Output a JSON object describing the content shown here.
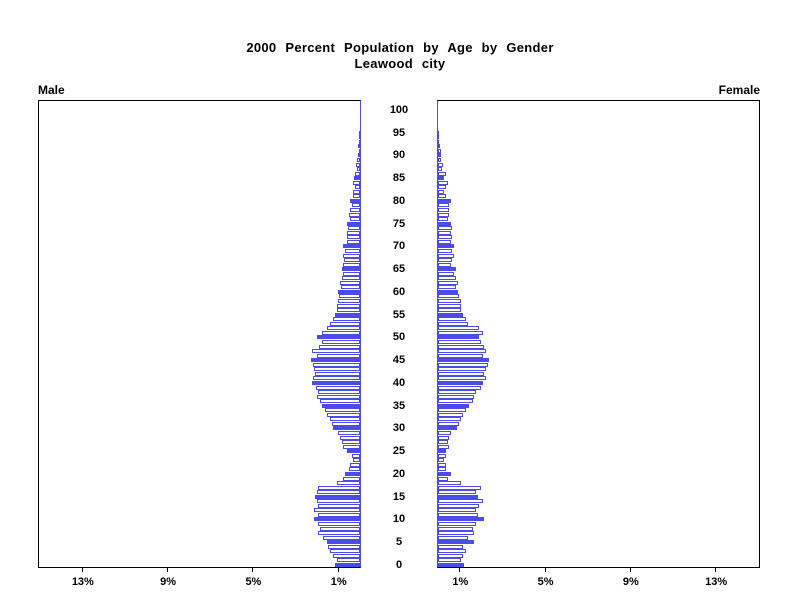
{
  "title": {
    "line1": "2000 Percent Population by Age by Gender",
    "line2": "Leawood city"
  },
  "left_label": "Male",
  "right_label": "Female",
  "colors": {
    "bar_blue": "#4b4beb",
    "axis_black": "#000000",
    "background": "#ffffff"
  },
  "chart_data": {
    "type": "bar",
    "subtype": "population-pyramid",
    "title": "2000 Percent Population by Age by Gender",
    "subtitle": "Leawood city",
    "unit": "percent of total population",
    "orientation": "horizontal, male bars extend left, female bars extend right",
    "highlight": "bars at ages divisible by 5 are solid blue, others white with blue outline",
    "age_axis": {
      "min": 0,
      "max": 100,
      "tick_step": 5,
      "ticks": [
        "0",
        "5",
        "10",
        "15",
        "20",
        "25",
        "30",
        "35",
        "40",
        "45",
        "50",
        "55",
        "60",
        "65",
        "70",
        "75",
        "80",
        "85",
        "90",
        "95",
        "100"
      ]
    },
    "pct_axis": {
      "ticks": [
        1,
        5,
        9,
        13
      ],
      "tick_labels": [
        "1%",
        "5%",
        "9%",
        "13%"
      ],
      "max": 15
    },
    "series": [
      {
        "name": "Male",
        "side": "left",
        "ages": "index equals age in years, 0 through 100",
        "values": [
          1.17,
          1.1,
          1.25,
          1.41,
          1.49,
          1.56,
          1.72,
          1.96,
          1.88,
          1.96,
          2.16,
          1.96,
          2.16,
          1.96,
          2.03,
          2.11,
          2.03,
          1.96,
          1.1,
          0.78,
          0.7,
          0.5,
          0.47,
          0.31,
          0.39,
          0.63,
          0.78,
          0.86,
          0.94,
          1.02,
          1.25,
          1.33,
          1.4,
          1.56,
          1.64,
          1.8,
          1.88,
          2.03,
          1.96,
          2.07,
          2.27,
          2.19,
          2.11,
          2.16,
          2.19,
          2.3,
          2.03,
          2.27,
          1.91,
          1.8,
          2.0,
          1.8,
          1.56,
          1.4,
          1.25,
          1.17,
          1.06,
          1.1,
          1.02,
          0.97,
          1.02,
          0.9,
          0.94,
          0.86,
          0.81,
          0.86,
          0.78,
          0.75,
          0.78,
          0.7,
          0.78,
          0.6,
          0.63,
          0.6,
          0.55,
          0.63,
          0.47,
          0.5,
          0.47,
          0.39,
          0.47,
          0.34,
          0.31,
          0.23,
          0.31,
          0.27,
          0.23,
          0.15,
          0.19,
          0.15,
          0.08,
          0.06,
          0.08,
          0.03,
          0.02,
          0.03,
          0,
          0,
          0,
          0,
          0
        ]
      },
      {
        "name": "Female",
        "side": "right",
        "ages": "index equals age in years, 0 through 100",
        "values": [
          1.24,
          1.08,
          1.16,
          1.3,
          1.16,
          1.7,
          1.4,
          1.7,
          1.63,
          1.78,
          2.17,
          1.86,
          1.78,
          1.94,
          2.1,
          1.86,
          1.78,
          2.02,
          1.08,
          0.45,
          0.6,
          0.38,
          0.38,
          0.3,
          0.38,
          0.38,
          0.53,
          0.45,
          0.53,
          0.6,
          0.88,
          1.0,
          1.08,
          1.16,
          1.3,
          1.47,
          1.63,
          1.7,
          1.78,
          2.02,
          2.1,
          2.25,
          2.17,
          2.25,
          2.33,
          2.4,
          2.1,
          2.25,
          2.17,
          2.02,
          1.94,
          2.1,
          1.94,
          1.4,
          1.3,
          1.16,
          1.08,
          1.08,
          1.08,
          1.0,
          0.92,
          0.84,
          0.92,
          0.84,
          0.76,
          0.84,
          0.6,
          0.68,
          0.76,
          0.68,
          0.76,
          0.6,
          0.68,
          0.6,
          0.68,
          0.6,
          0.45,
          0.53,
          0.53,
          0.53,
          0.6,
          0.38,
          0.3,
          0.38,
          0.45,
          0.3,
          0.37,
          0.2,
          0.22,
          0.15,
          0.15,
          0.12,
          0.09,
          0.06,
          0.04,
          0.05,
          0,
          0,
          0,
          0,
          0
        ]
      }
    ]
  }
}
